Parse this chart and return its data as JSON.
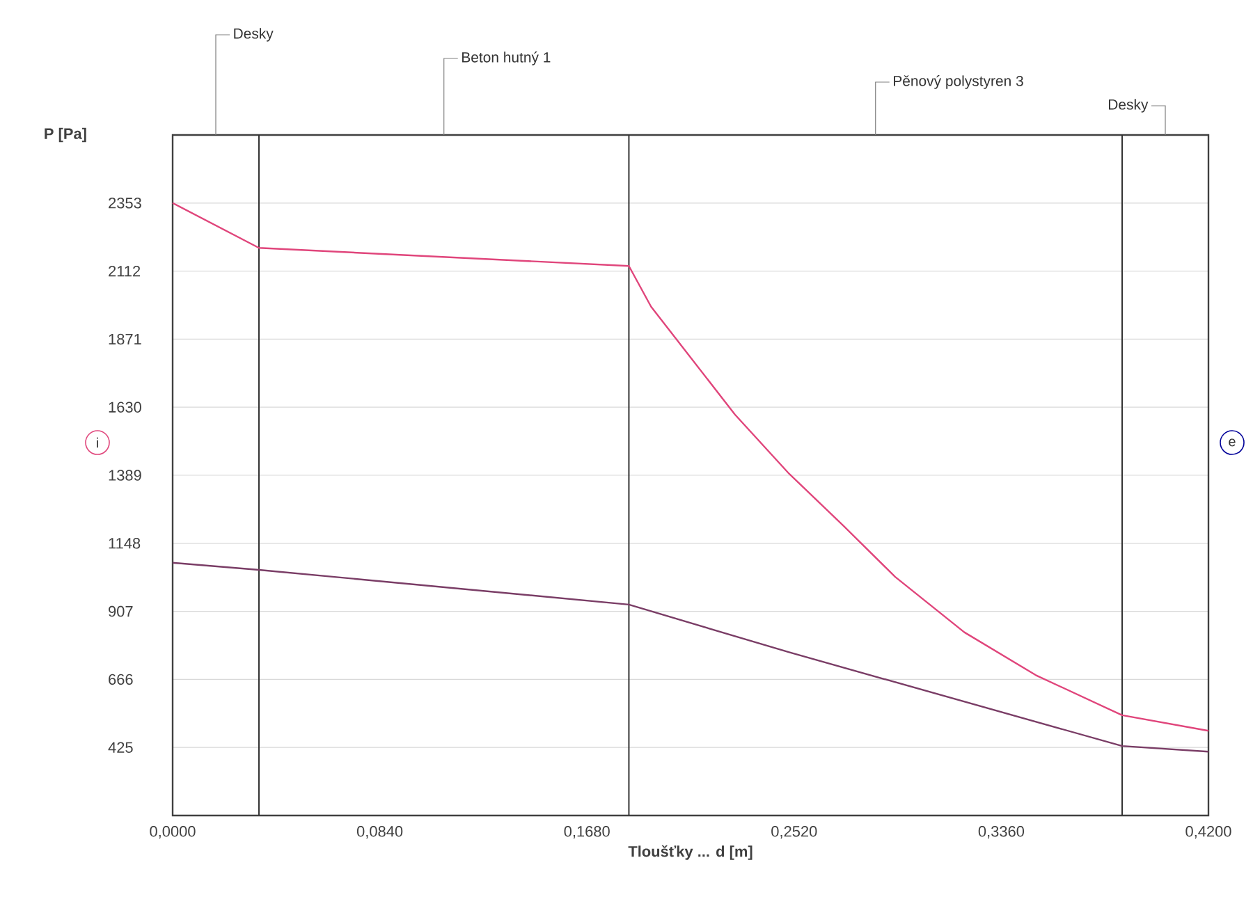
{
  "chart_data": {
    "type": "line",
    "xlabel": "**Tloušťky ... d [m]**",
    "ylabel": "**P [Pa]**",
    "xlim": [
      0,
      0.42
    ],
    "ylim": [
      184,
      2594
    ],
    "xticks": [
      {
        "value": 0,
        "label": "0,0000"
      },
      {
        "value": 0.084,
        "label": "0,0840"
      },
      {
        "value": 0.168,
        "label": "0,1680"
      },
      {
        "value": 0.252,
        "label": "0,2520"
      },
      {
        "value": 0.336,
        "label": "0,3360"
      },
      {
        "value": 0.42,
        "label": "0,4200"
      }
    ],
    "yticks": [
      425,
      666,
      907,
      1148,
      1389,
      1630,
      1871,
      2112,
      2353
    ],
    "grid": "y",
    "marker": "none",
    "line_style": "solid",
    "series": [
      {
        "color": "#e0457b",
        "x": [
          0,
          0.035,
          0.185,
          0.194,
          0.228,
          0.25,
          0.272,
          0.293,
          0.321,
          0.35,
          0.385,
          0.42
        ],
        "values": [
          2353,
          2194,
          2130,
          1986,
          1604,
          1394,
          1210,
          1029,
          833,
          681,
          539,
          484
        ]
      },
      {
        "color": "#7a3d66",
        "x": [
          0,
          0.035,
          0.185,
          0.25,
          0.385,
          0.42
        ],
        "values": [
          1079,
          1054,
          931,
          762,
          430,
          410
        ]
      }
    ],
    "ref_lines": [
      {
        "axis": "x",
        "value": 0.035,
        "color": "#333333"
      },
      {
        "axis": "x",
        "value": 0.185,
        "color": "#333333"
      },
      {
        "axis": "x",
        "value": 0.385,
        "color": "#333333"
      }
    ],
    "annotations": [
      "Desky",
      "Beton hutný 1",
      "Pěnový polystyren 3",
      "Desky",
      "i",
      "e"
    ]
  }
}
